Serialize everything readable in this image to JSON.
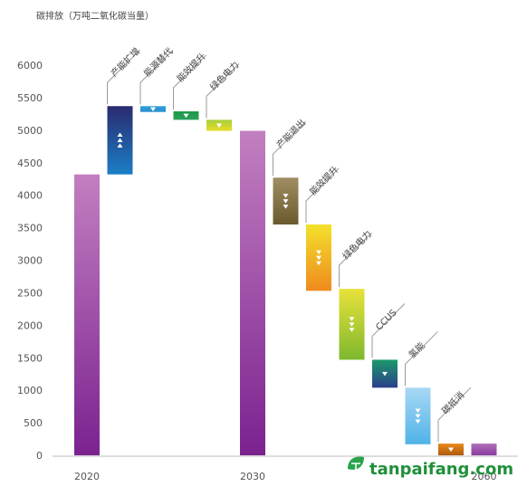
{
  "chart_data": {
    "type": "bar",
    "ylabel": "碳排放（万吨二氧化碳当量）",
    "ylim": [
      0,
      6000
    ],
    "yticks": [
      0,
      500,
      1000,
      1500,
      2000,
      2500,
      3000,
      3500,
      4000,
      4500,
      5000,
      5500,
      6000
    ],
    "xticks": [
      "2020",
      "2030",
      "2060"
    ],
    "grid": false,
    "bars": [
      {
        "label": "",
        "tick": "2020",
        "kind": "total",
        "base": 0,
        "top": 4320,
        "color_top": "#c27fc0",
        "color_bottom": "#7b2290"
      },
      {
        "label": "产能扩增",
        "kind": "increase",
        "base": 4320,
        "top": 5370,
        "color_top": "#2b2a6e",
        "color_bottom": "#1a7fc6"
      },
      {
        "label": "能源替代",
        "kind": "decrease",
        "base": 5280,
        "top": 5370,
        "color_top": "#2f9fd8",
        "color_bottom": "#2b8fd0"
      },
      {
        "label": "能效提升",
        "kind": "decrease",
        "base": 5160,
        "top": 5290,
        "color_top": "#1e9a4a",
        "color_bottom": "#2aa05a"
      },
      {
        "label": "绿色电力",
        "kind": "decrease",
        "base": 4990,
        "top": 5160,
        "color_top": "#a8cf3a",
        "color_bottom": "#e8dc2a"
      },
      {
        "label": "",
        "tick": "2030",
        "kind": "total",
        "base": 0,
        "top": 4990,
        "color_top": "#c27fc0",
        "color_bottom": "#7b2290"
      },
      {
        "label": "产能退出",
        "kind": "decrease",
        "base": 3550,
        "top": 4270,
        "color_top": "#a08e63",
        "color_bottom": "#6b5a2e"
      },
      {
        "label": "能效提升",
        "kind": "decrease",
        "base": 2530,
        "top": 3550,
        "color_top": "#f2e12a",
        "color_bottom": "#ef8a1e"
      },
      {
        "label": "绿色电力",
        "kind": "decrease",
        "base": 1470,
        "top": 2560,
        "color_top": "#e8e23a",
        "color_bottom": "#7fb82e"
      },
      {
        "label": "CCUS",
        "kind": "decrease",
        "base": 1040,
        "top": 1470,
        "color_top": "#1b9a6a",
        "color_bottom": "#2a3f8c"
      },
      {
        "label": "氢能",
        "kind": "decrease",
        "base": 170,
        "top": 1040,
        "color_top": "#a9d8f4",
        "color_bottom": "#4fb3e8"
      },
      {
        "label": "碳抵消",
        "kind": "decrease",
        "base": 0,
        "top": 180,
        "color_top": "#e88a1a",
        "color_bottom": "#b05a10"
      },
      {
        "label": "",
        "tick": "2060",
        "kind": "total",
        "base": 0,
        "top": 180,
        "color_top": "#b070b8",
        "color_bottom": "#8a3aa0"
      }
    ]
  },
  "watermark": {
    "text": "tanpaifang.com",
    "icon": "leaf-t-logo-icon",
    "color": "#1f8f3a"
  }
}
